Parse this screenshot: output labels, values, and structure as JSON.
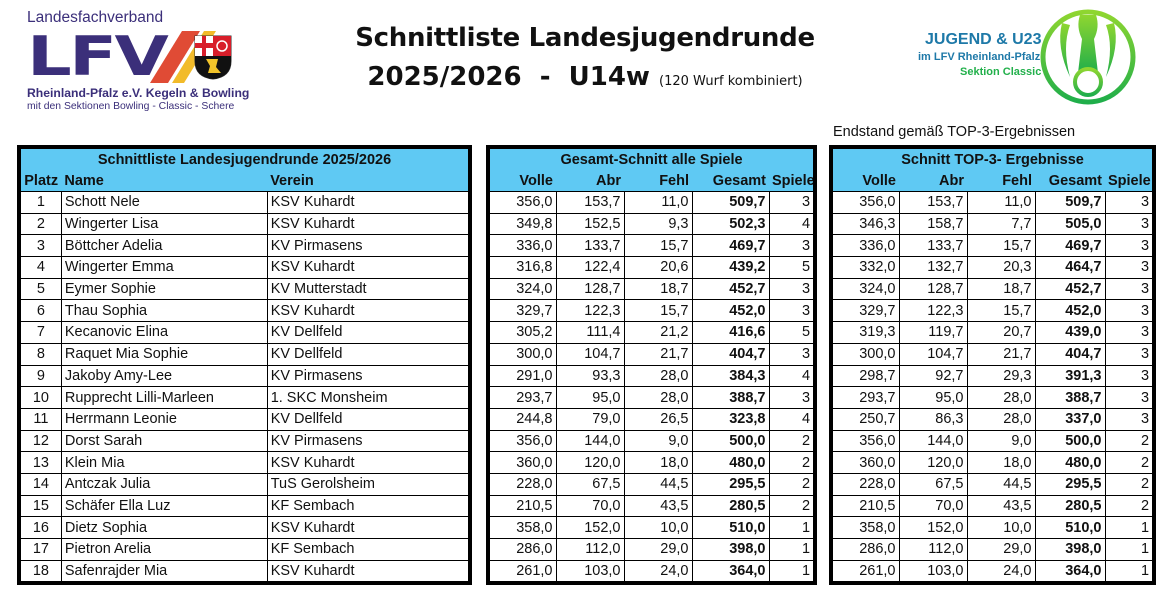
{
  "logo_left": {
    "top_text": "Landesfachverband",
    "big_text": "LFV",
    "line2": "Rheinland-Pfalz e.V. Kegeln & Bowling",
    "line3": "mit den Sektionen Bowling - Classic - Schere",
    "colors": {
      "purple": "#3b2f7a",
      "red": "#e04b35",
      "yellow": "#f2bb2a"
    }
  },
  "logo_right": {
    "line1": "JUGEND & U23",
    "line2": "im LFV Rheinland-Pfalz",
    "line3": "Sektion Classic",
    "colors": {
      "blue": "#1e79a8",
      "green": "#22b04b"
    }
  },
  "header": {
    "title": "Schnittliste Landesjugendrunde",
    "subtitle": "2025/2026  -  U14w",
    "subtitle_note": "(120 Wurf kombiniert)",
    "endstand_note": "Endstand gemäß TOP-3-Ergebnissen"
  },
  "colors": {
    "header_bg": "#5FC9F3",
    "border": "#000000"
  },
  "table_players": {
    "title": "Schnittliste Landesjugendrunde 2025/2026",
    "columns": [
      "Platz",
      "Name",
      "Verein"
    ]
  },
  "table_all": {
    "title": "Gesamt-Schnitt alle Spiele",
    "columns": [
      "Volle",
      "Abr",
      "Fehl",
      "Gesamt",
      "Spiele"
    ]
  },
  "table_top3": {
    "title": "Schnitt TOP-3- Ergebnisse",
    "columns": [
      "Volle",
      "Abr",
      "Fehl",
      "Gesamt",
      "Spiele"
    ]
  },
  "rows": [
    {
      "platz": "1",
      "name": "Schott Nele",
      "verein": "KSV Kuhardt",
      "all": [
        "356,0",
        "153,7",
        "11,0",
        "509,7",
        "3"
      ],
      "top3": [
        "356,0",
        "153,7",
        "11,0",
        "509,7",
        "3"
      ]
    },
    {
      "platz": "2",
      "name": "Wingerter Lisa",
      "verein": "KSV Kuhardt",
      "all": [
        "349,8",
        "152,5",
        "9,3",
        "502,3",
        "4"
      ],
      "top3": [
        "346,3",
        "158,7",
        "7,7",
        "505,0",
        "3"
      ]
    },
    {
      "platz": "3",
      "name": "Böttcher  Adelia",
      "verein": "KV Pirmasens",
      "all": [
        "336,0",
        "133,7",
        "15,7",
        "469,7",
        "3"
      ],
      "top3": [
        "336,0",
        "133,7",
        "15,7",
        "469,7",
        "3"
      ]
    },
    {
      "platz": "4",
      "name": "Wingerter Emma",
      "verein": "KSV Kuhardt",
      "all": [
        "316,8",
        "122,4",
        "20,6",
        "439,2",
        "5"
      ],
      "top3": [
        "332,0",
        "132,7",
        "20,3",
        "464,7",
        "3"
      ]
    },
    {
      "platz": "5",
      "name": "Eymer Sophie",
      "verein": "KV Mutterstadt",
      "all": [
        "324,0",
        "128,7",
        "18,7",
        "452,7",
        "3"
      ],
      "top3": [
        "324,0",
        "128,7",
        "18,7",
        "452,7",
        "3"
      ]
    },
    {
      "platz": "6",
      "name": "Thau Sophia",
      "verein": "KSV Kuhardt",
      "all": [
        "329,7",
        "122,3",
        "15,7",
        "452,0",
        "3"
      ],
      "top3": [
        "329,7",
        "122,3",
        "15,7",
        "452,0",
        "3"
      ]
    },
    {
      "platz": "7",
      "name": "Kecanovic Elina",
      "verein": "KV Dellfeld",
      "all": [
        "305,2",
        "111,4",
        "21,2",
        "416,6",
        "5"
      ],
      "top3": [
        "319,3",
        "119,7",
        "20,7",
        "439,0",
        "3"
      ]
    },
    {
      "platz": "8",
      "name": "Raquet Mia Sophie",
      "verein": "KV Dellfeld",
      "all": [
        "300,0",
        "104,7",
        "21,7",
        "404,7",
        "3"
      ],
      "top3": [
        "300,0",
        "104,7",
        "21,7",
        "404,7",
        "3"
      ]
    },
    {
      "platz": "9",
      "name": "Jakoby Amy-Lee",
      "verein": "KV Pirmasens",
      "all": [
        "291,0",
        "93,3",
        "28,0",
        "384,3",
        "4"
      ],
      "top3": [
        "298,7",
        "92,7",
        "29,3",
        "391,3",
        "3"
      ]
    },
    {
      "platz": "10",
      "name": "Rupprecht Lilli-Marleen",
      "verein": "1. SKC Monsheim",
      "all": [
        "293,7",
        "95,0",
        "28,0",
        "388,7",
        "3"
      ],
      "top3": [
        "293,7",
        "95,0",
        "28,0",
        "388,7",
        "3"
      ]
    },
    {
      "platz": "11",
      "name": "Herrmann Leonie",
      "verein": "KV Dellfeld",
      "all": [
        "244,8",
        "79,0",
        "26,5",
        "323,8",
        "4"
      ],
      "top3": [
        "250,7",
        "86,3",
        "28,0",
        "337,0",
        "3"
      ]
    },
    {
      "platz": "12",
      "name": "Dorst Sarah",
      "verein": "KV Pirmasens",
      "all": [
        "356,0",
        "144,0",
        "9,0",
        "500,0",
        "2"
      ],
      "top3": [
        "356,0",
        "144,0",
        "9,0",
        "500,0",
        "2"
      ]
    },
    {
      "platz": "13",
      "name": "Klein Mia",
      "verein": "KSV Kuhardt",
      "all": [
        "360,0",
        "120,0",
        "18,0",
        "480,0",
        "2"
      ],
      "top3": [
        "360,0",
        "120,0",
        "18,0",
        "480,0",
        "2"
      ]
    },
    {
      "platz": "14",
      "name": "Antczak Julia",
      "verein": "TuS Gerolsheim",
      "all": [
        "228,0",
        "67,5",
        "44,5",
        "295,5",
        "2"
      ],
      "top3": [
        "228,0",
        "67,5",
        "44,5",
        "295,5",
        "2"
      ]
    },
    {
      "platz": "15",
      "name": "Schäfer Ella Luz",
      "verein": "KF Sembach",
      "all": [
        "210,5",
        "70,0",
        "43,5",
        "280,5",
        "2"
      ],
      "top3": [
        "210,5",
        "70,0",
        "43,5",
        "280,5",
        "2"
      ]
    },
    {
      "platz": "16",
      "name": "Dietz Sophia",
      "verein": "KSV Kuhardt",
      "all": [
        "358,0",
        "152,0",
        "10,0",
        "510,0",
        "1"
      ],
      "top3": [
        "358,0",
        "152,0",
        "10,0",
        "510,0",
        "1"
      ]
    },
    {
      "platz": "17",
      "name": "Pietron Arelia",
      "verein": "KF Sembach",
      "all": [
        "286,0",
        "112,0",
        "29,0",
        "398,0",
        "1"
      ],
      "top3": [
        "286,0",
        "112,0",
        "29,0",
        "398,0",
        "1"
      ]
    },
    {
      "platz": "18",
      "name": "Safenrajder Mia",
      "verein": "KSV Kuhardt",
      "all": [
        "261,0",
        "103,0",
        "24,0",
        "364,0",
        "1"
      ],
      "top3": [
        "261,0",
        "103,0",
        "24,0",
        "364,0",
        "1"
      ]
    }
  ]
}
